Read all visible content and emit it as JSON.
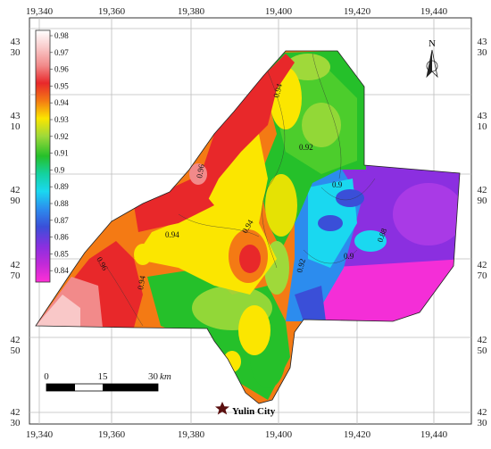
{
  "map": {
    "top_ticks": [
      "19,340",
      "19,360",
      "19,380",
      "19,400",
      "19,420",
      "19,440"
    ],
    "bottom_ticks": [
      "19,340",
      "19,360",
      "19,380",
      "19,400",
      "19,420",
      "19,440"
    ],
    "left_ticks": [
      [
        "43",
        "30"
      ],
      [
        "43",
        "10"
      ],
      [
        "42",
        "90"
      ],
      [
        "42",
        "70"
      ],
      [
        "42",
        "50"
      ],
      [
        "42",
        "30"
      ]
    ],
    "right_ticks": [
      [
        "43",
        "30"
      ],
      [
        "43",
        "10"
      ],
      [
        "42",
        "90"
      ],
      [
        "42",
        "70"
      ],
      [
        "42",
        "50"
      ],
      [
        "42",
        "30"
      ]
    ],
    "north_label": "N",
    "city_label": "Yulin City",
    "scale": {
      "labels": [
        "0",
        "15",
        "30"
      ],
      "unit": "km"
    },
    "legend": {
      "values": [
        "0.98",
        "0.97",
        "0.96",
        "0.95",
        "0.94",
        "0.93",
        "0.92",
        "0.91",
        "0.9",
        "0.89",
        "0.88",
        "0.87",
        "0.86",
        "0.85",
        "0.84"
      ],
      "colors": [
        "#ffffff",
        "#f9c8c8",
        "#f28a8a",
        "#e8282a",
        "#f47a14",
        "#fbe600",
        "#9fd93a",
        "#25c02a",
        "#14d2a0",
        "#1ad8f0",
        "#2c8cee",
        "#3a4fd8",
        "#8b2fe0",
        "#c22ad8",
        "#ff2fd6"
      ]
    },
    "contour_labels": [
      "0.94",
      "0.92",
      "0.96",
      "0.94",
      "0.94",
      "0.9",
      "0.88",
      "0.92",
      "0.9",
      "0.96",
      "0.94"
    ]
  }
}
